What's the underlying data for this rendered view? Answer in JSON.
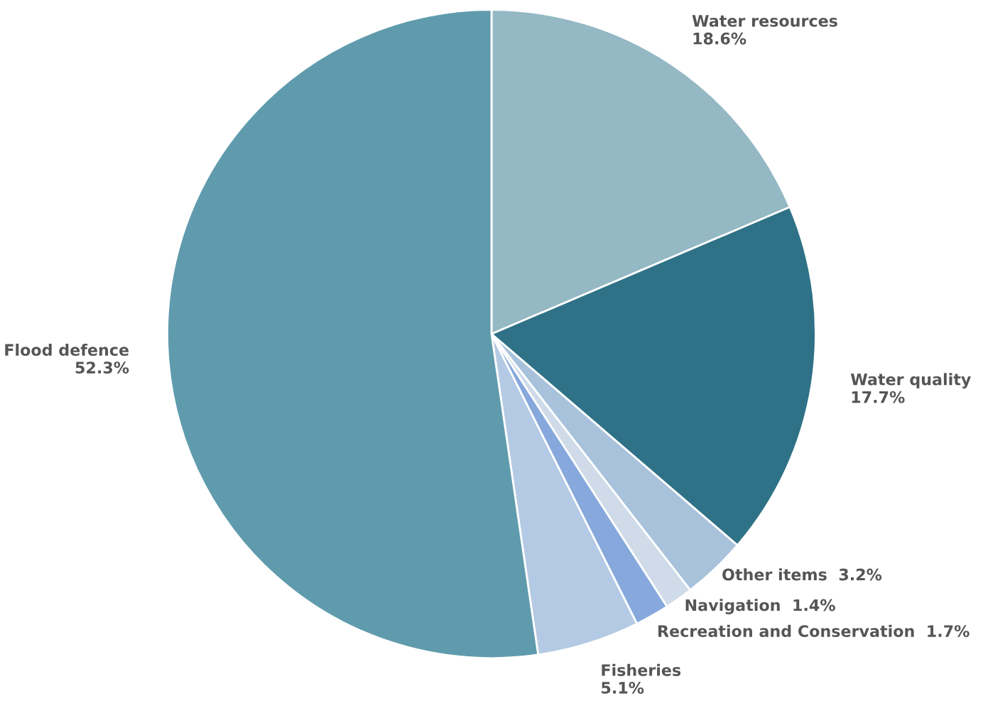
{
  "chart_data": {
    "type": "pie",
    "categories": [
      "Water resources",
      "Water quality",
      "Other items",
      "Navigation",
      "Recreation and Conservation",
      "Fisheries",
      "Flood defence"
    ],
    "values": [
      18.6,
      17.7,
      3.2,
      1.4,
      1.7,
      5.1,
      52.3
    ],
    "colors": [
      "#94b8c4",
      "#2f7287",
      "#a8c2dc",
      "#cfdbe8",
      "#86a8dc",
      "#b4cae4",
      "#5f9bad"
    ],
    "value_labels": [
      "18.6%",
      "17.7%",
      "3.2%",
      "1.4%",
      "1.7%",
      "5.1%",
      "52.3%"
    ]
  }
}
